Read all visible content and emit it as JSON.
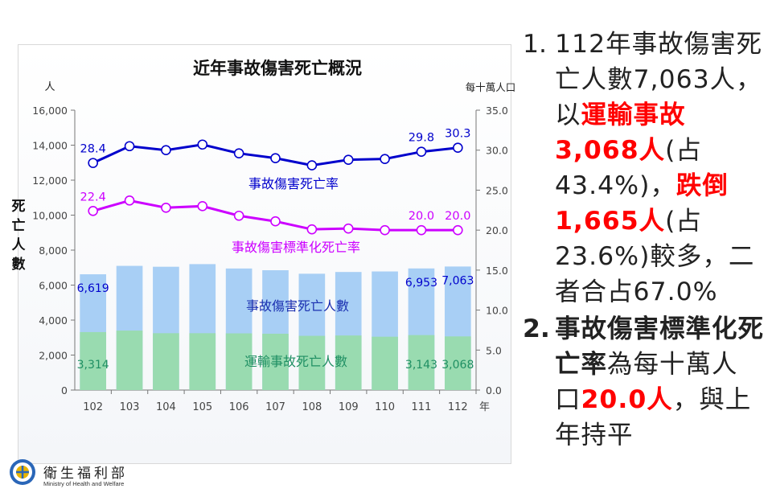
{
  "colors": {
    "rate_line": "#0000cc",
    "std_rate_line": "#cc00ff",
    "bar_total": "#a8cff5",
    "bar_transport": "#99dbb0",
    "transport_label": "#1f8f63",
    "highlight_red": "#ff0000"
  },
  "chart_data": {
    "type": "bar",
    "title": "近年事故傷害死亡概況",
    "xlabel": "年",
    "ylabel_left": "死亡人數",
    "ylabel_left_unit": "人",
    "ylabel_right_unit": "每十萬人口",
    "ylim_left": [
      0,
      16000
    ],
    "ylim_right": [
      0,
      35
    ],
    "yticks_left": [
      "0",
      "2,000",
      "4,000",
      "6,000",
      "8,000",
      "10,000",
      "12,000",
      "14,000",
      "16,000"
    ],
    "yticks_right": [
      "0.0",
      "5.0",
      "10.0",
      "15.0",
      "20.0",
      "25.0",
      "30.0",
      "35.0"
    ],
    "categories": [
      "102",
      "103",
      "104",
      "105",
      "106",
      "107",
      "108",
      "109",
      "110",
      "111",
      "112"
    ],
    "series": [
      {
        "name": "事故傷害死亡人數",
        "kind": "bar",
        "axis": "left",
        "values": [
          6619,
          7100,
          7050,
          7200,
          6950,
          6850,
          6650,
          6750,
          6780,
          6953,
          7063
        ],
        "labels": [
          "6,619",
          "",
          "",
          "",
          "",
          "",
          "",
          "",
          "",
          "6,953",
          "7,063"
        ]
      },
      {
        "name": "運輸事故死亡人數",
        "kind": "bar",
        "axis": "left",
        "values": [
          3314,
          3400,
          3250,
          3250,
          3240,
          3220,
          3100,
          3120,
          3050,
          3143,
          3068
        ],
        "labels": [
          "3,314",
          "",
          "",
          "",
          "",
          "",
          "",
          "",
          "",
          "3,143",
          "3,068"
        ]
      },
      {
        "name": "事故傷害死亡率",
        "kind": "line",
        "axis": "right",
        "values": [
          28.4,
          30.5,
          30.0,
          30.7,
          29.6,
          29.0,
          28.1,
          28.8,
          28.9,
          29.8,
          30.3
        ],
        "labels": [
          "28.4",
          "",
          "",
          "",
          "",
          "",
          "",
          "",
          "",
          "29.8",
          "30.3"
        ]
      },
      {
        "name": "事故傷害標準化死亡率",
        "kind": "line",
        "axis": "right",
        "values": [
          22.4,
          23.7,
          22.8,
          23.0,
          21.8,
          21.1,
          20.1,
          20.2,
          20.0,
          20.0,
          20.0
        ],
        "labels": [
          "22.4",
          "",
          "",
          "",
          "",
          "",
          "",
          "",
          "",
          "20.0",
          "20.0"
        ]
      }
    ]
  },
  "points": {
    "p1_number": "1.",
    "p1_parts": [
      {
        "text": "112年事故傷害死亡人數7,063人，以",
        "style": "normal"
      },
      {
        "text": "運輸事故3,068人",
        "style": "red"
      },
      {
        "text": "(占43.4%)，",
        "style": "normal"
      },
      {
        "text": "跌倒1,665人",
        "style": "red"
      },
      {
        "text": "(占23.6%)較多，二者合占67.0%",
        "style": "normal"
      }
    ],
    "p2_number": "2.",
    "p2_parts": [
      {
        "text": "事故傷害標準化死亡率",
        "style": "bold"
      },
      {
        "text": "為每十萬人口",
        "style": "normal"
      },
      {
        "text": "20.0人",
        "style": "red"
      },
      {
        "text": "，與上年持平",
        "style": "normal"
      }
    ]
  },
  "footer": {
    "org_name_zh": "衛生福利部",
    "org_name_en": "Ministry of Health and Welfare"
  }
}
